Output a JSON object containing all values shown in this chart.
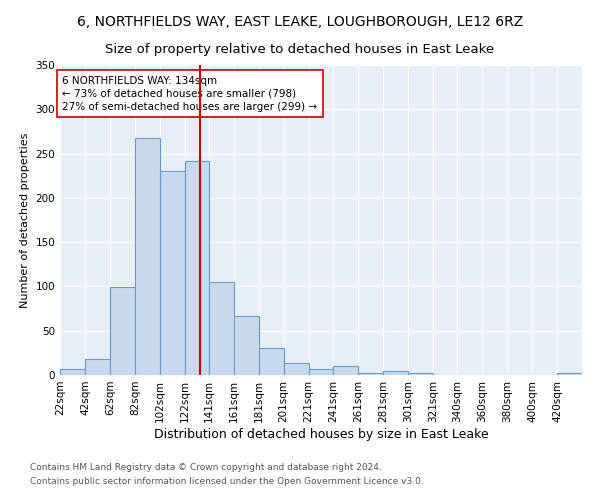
{
  "title1": "6, NORTHFIELDS WAY, EAST LEAKE, LOUGHBOROUGH, LE12 6RZ",
  "title2": "Size of property relative to detached houses in East Leake",
  "xlabel": "Distribution of detached houses by size in East Leake",
  "ylabel": "Number of detached properties",
  "footer1": "Contains HM Land Registry data © Crown copyright and database right 2024.",
  "footer2": "Contains public sector information licensed under the Open Government Licence v3.0.",
  "bar_color": "#c9d9ed",
  "bar_edge_color": "#6699cc",
  "background_color": "#e8eef8",
  "grid_color": "#ffffff",
  "vline_x": 134,
  "vline_color": "#cc0000",
  "annotation_text": "6 NORTHFIELDS WAY: 134sqm\n← 73% of detached houses are smaller (798)\n27% of semi-detached houses are larger (299) →",
  "annotation_box_color": "#ffffff",
  "annotation_box_edge": "#cc0000",
  "bins_left_edges": [
    22,
    42,
    62,
    82,
    102,
    122,
    141,
    161,
    181,
    201,
    221,
    241,
    261,
    281,
    301,
    321,
    340,
    360,
    380,
    400,
    420
  ],
  "bin_widths": [
    20,
    20,
    20,
    20,
    20,
    19,
    20,
    20,
    20,
    20,
    20,
    20,
    20,
    20,
    20,
    19,
    20,
    20,
    20,
    20,
    20
  ],
  "values": [
    7,
    18,
    99,
    268,
    230,
    242,
    105,
    67,
    30,
    14,
    7,
    10,
    2,
    4,
    2,
    0,
    0,
    0,
    0,
    0,
    2
  ],
  "tick_labels": [
    "22sqm",
    "42sqm",
    "62sqm",
    "82sqm",
    "102sqm",
    "122sqm",
    "141sqm",
    "161sqm",
    "181sqm",
    "201sqm",
    "221sqm",
    "241sqm",
    "261sqm",
    "281sqm",
    "301sqm",
    "321sqm",
    "340sqm",
    "360sqm",
    "380sqm",
    "400sqm",
    "420sqm"
  ],
  "ylim": [
    0,
    350
  ],
  "yticks": [
    0,
    50,
    100,
    150,
    200,
    250,
    300,
    350
  ],
  "title1_fontsize": 10,
  "title2_fontsize": 9.5,
  "xlabel_fontsize": 9,
  "ylabel_fontsize": 8,
  "tick_fontsize": 7.5,
  "footer_fontsize": 6.5,
  "ann_fontsize": 7.5
}
